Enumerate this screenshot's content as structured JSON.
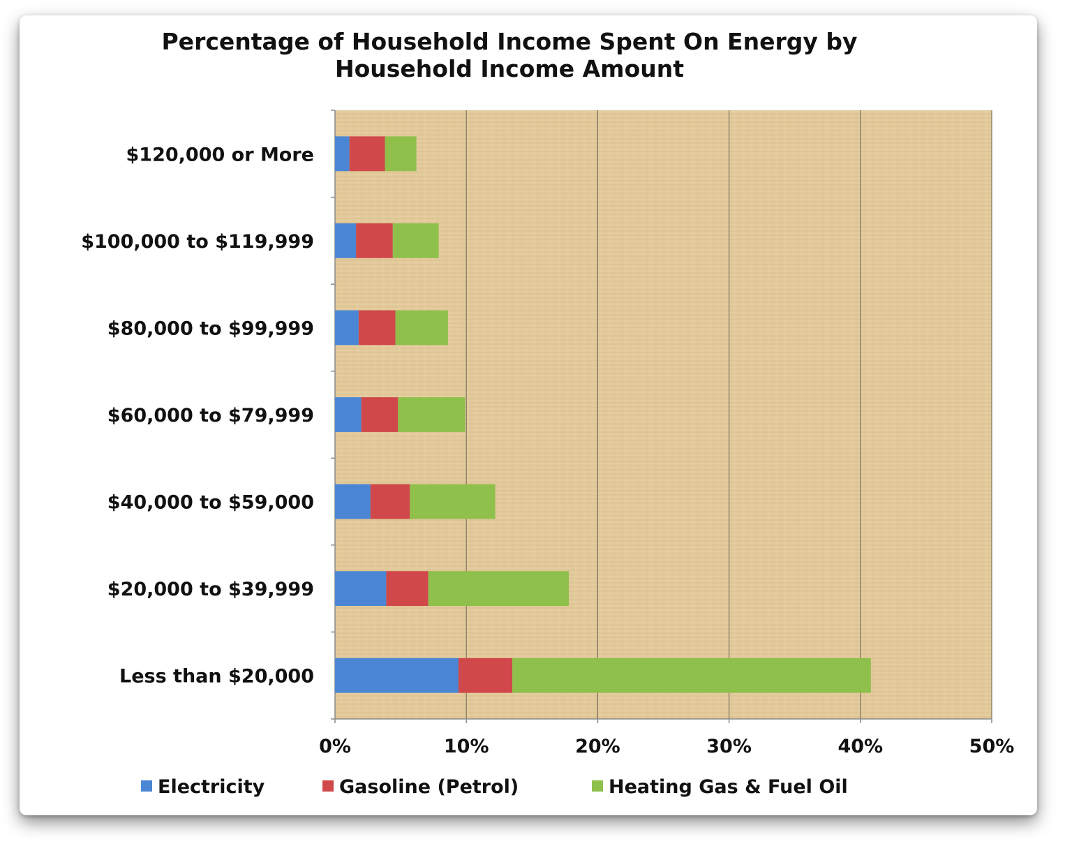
{
  "chart_data": {
    "type": "bar",
    "orientation": "horizontal",
    "stacked": true,
    "title_lines": [
      "Percentage of Household Income Spent On Energy by",
      "Household Income Amount"
    ],
    "categories": [
      "$120,000 or More",
      "$100,000 to $119,999",
      "$80,000 to $99,999",
      "$60,000 to $79,999",
      "$40,000 to $59,000",
      "$20,000 to $39,999",
      "Less than $20,000"
    ],
    "series": [
      {
        "name": "Electricity",
        "color": "#4a86d4",
        "values": [
          1.1,
          1.6,
          1.8,
          2.0,
          2.7,
          3.9,
          9.4
        ]
      },
      {
        "name": "Gasoline (Petrol)",
        "color": "#d0484a",
        "values": [
          2.7,
          2.8,
          2.8,
          2.8,
          3.0,
          3.2,
          4.1
        ]
      },
      {
        "name": "Heating Gas & Fuel Oil",
        "color": "#8fc04c",
        "values": [
          2.4,
          3.5,
          4.0,
          5.1,
          6.5,
          10.7,
          27.3
        ]
      }
    ],
    "xlim": [
      0,
      50
    ],
    "xticks": [
      "0%",
      "10%",
      "20%",
      "30%",
      "40%",
      "50%"
    ],
    "xtick_values": [
      0,
      10,
      20,
      30,
      40,
      50
    ],
    "grid": true,
    "legend_position": "bottom",
    "plot_background": "#e2c99a"
  }
}
